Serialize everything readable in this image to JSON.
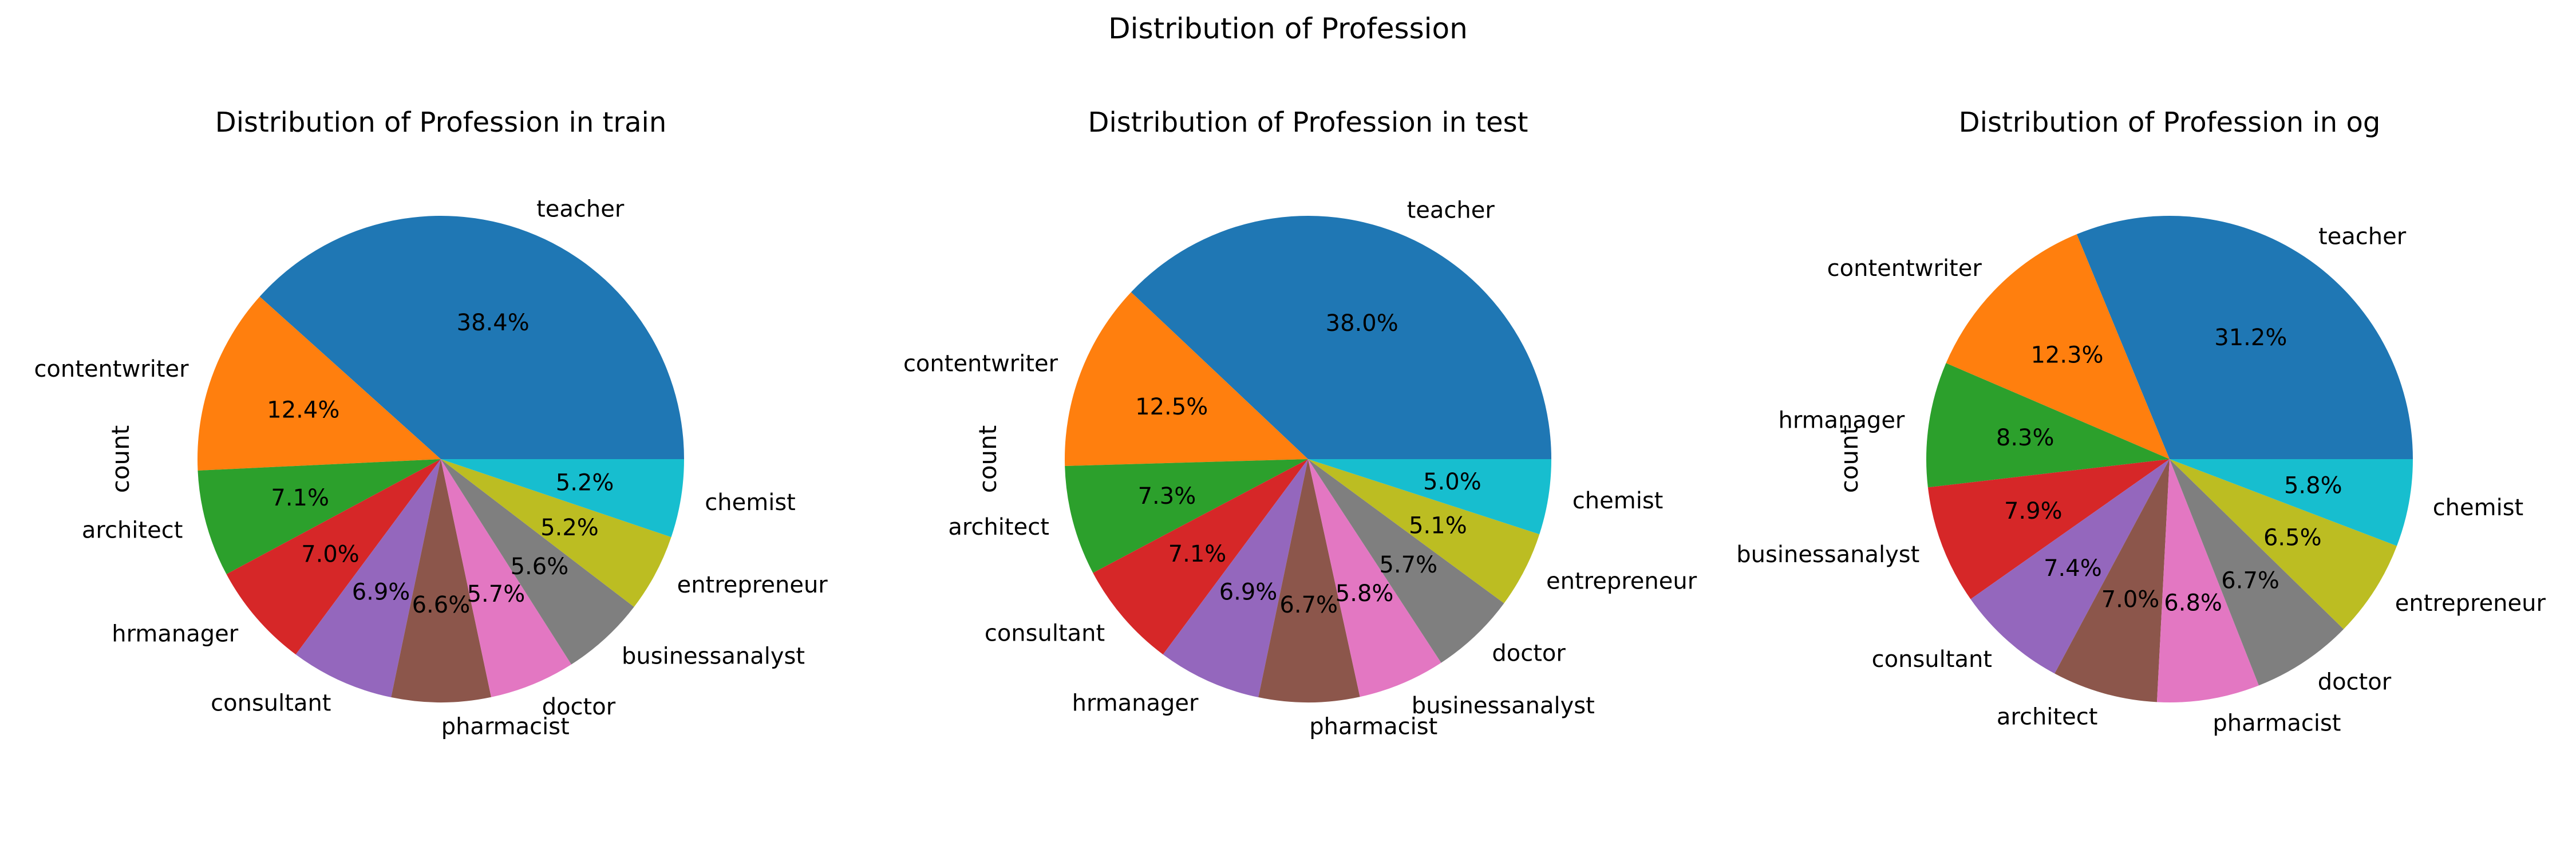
{
  "figure": {
    "suptitle": "Distribution of Profession"
  },
  "chart_data": [
    {
      "type": "pie",
      "title": "Distribution of Profession in train",
      "ylabel": "count",
      "categories": [
        "teacher",
        "contentwriter",
        "architect",
        "hrmanager",
        "consultant",
        "pharmacist",
        "doctor",
        "businessanalyst",
        "entrepreneur",
        "chemist"
      ],
      "values": [
        38.4,
        12.4,
        7.1,
        7.0,
        6.9,
        6.6,
        5.7,
        5.6,
        5.2,
        5.2
      ],
      "labels_pct": [
        "38.4%",
        "12.4%",
        "7.1%",
        "7.0%",
        "6.9%",
        "6.6%",
        "5.7%",
        "5.6%",
        "5.2%",
        "5.2%"
      ],
      "colors": [
        "#1f77b4",
        "#ff7f0e",
        "#2ca02c",
        "#d62728",
        "#9467bd",
        "#8c564b",
        "#e377c2",
        "#7f7f7f",
        "#bcbd22",
        "#17becf"
      ]
    },
    {
      "type": "pie",
      "title": "Distribution of Profession in test",
      "ylabel": "count",
      "categories": [
        "teacher",
        "contentwriter",
        "architect",
        "consultant",
        "hrmanager",
        "pharmacist",
        "businessanalyst",
        "doctor",
        "entrepreneur",
        "chemist"
      ],
      "values": [
        38.0,
        12.5,
        7.3,
        7.1,
        6.9,
        6.7,
        5.8,
        5.7,
        5.1,
        5.0
      ],
      "labels_pct": [
        "38.0%",
        "12.5%",
        "7.3%",
        "7.1%",
        "6.9%",
        "6.7%",
        "5.8%",
        "5.7%",
        "5.1%",
        "5.0%"
      ],
      "colors": [
        "#1f77b4",
        "#ff7f0e",
        "#2ca02c",
        "#d62728",
        "#9467bd",
        "#8c564b",
        "#e377c2",
        "#7f7f7f",
        "#bcbd22",
        "#17becf"
      ]
    },
    {
      "type": "pie",
      "title": "Distribution of Profession in og",
      "ylabel": "count",
      "categories": [
        "teacher",
        "contentwriter",
        "hrmanager",
        "businessanalyst",
        "consultant",
        "architect",
        "pharmacist",
        "doctor",
        "entrepreneur",
        "chemist"
      ],
      "values": [
        31.2,
        12.3,
        8.3,
        7.9,
        7.4,
        7.0,
        6.8,
        6.7,
        6.5,
        5.8
      ],
      "labels_pct": [
        "31.2%",
        "12.3%",
        "8.3%",
        "7.9%",
        "7.4%",
        "7.0%",
        "6.8%",
        "6.7%",
        "6.5%",
        "5.8%"
      ],
      "colors": [
        "#1f77b4",
        "#ff7f0e",
        "#2ca02c",
        "#d62728",
        "#9467bd",
        "#8c564b",
        "#e377c2",
        "#7f7f7f",
        "#bcbd22",
        "#17becf"
      ]
    }
  ]
}
